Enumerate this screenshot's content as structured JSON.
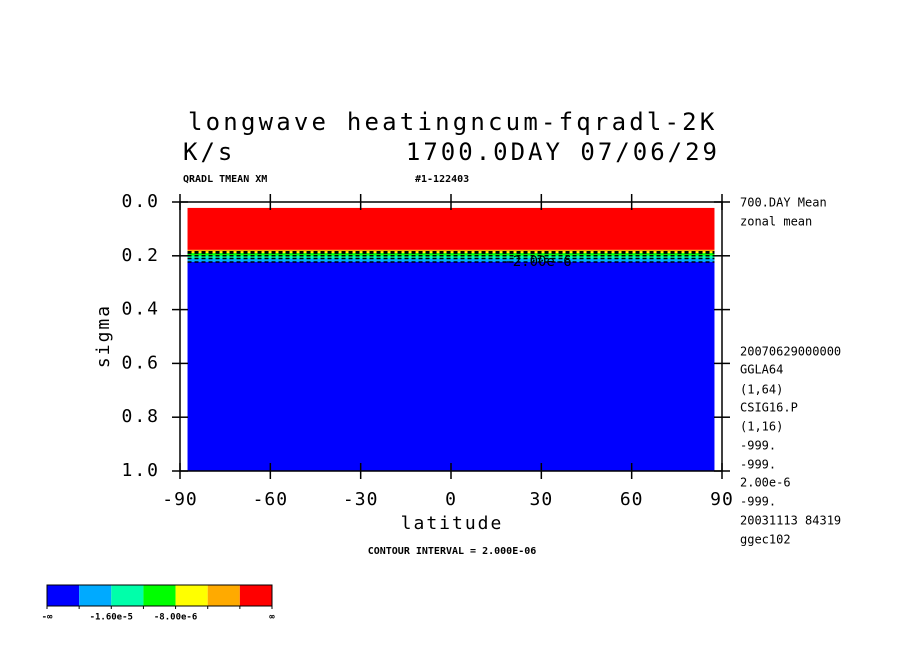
{
  "chart_data": {
    "type": "filled-contour",
    "title": "longwave heatingncum-fqradl-2K",
    "units": "K/s",
    "time_label": "1700.0DAY 07/06/29",
    "variable_label": "QRADL TMEAN XM",
    "run_label": "#1-122403",
    "x_label": "latitude",
    "y_label": "sigma",
    "contour_interval": "CONTOUR INTERVAL = 2.000E-06",
    "contour_label": "-2.00e-6",
    "side_notes": [
      "700.DAY Mean",
      "zonal mean",
      "20070629000000",
      "GGLA64",
      "(1,64)",
      "CSIG16.P",
      "(1,16)",
      "-999.",
      "-999.",
      "2.00e-6",
      "-999.",
      "20031113  84319",
      "ggec102"
    ],
    "xlim": [
      -90,
      90
    ],
    "xticks": [
      -90,
      -60,
      -30,
      0,
      30,
      60,
      90
    ],
    "ylim": [
      0,
      1
    ],
    "y_reversed": true,
    "yticks": [
      {
        "value": 0,
        "label": "0.0"
      },
      0.2,
      0.4,
      0.6,
      0.8,
      {
        "value": 1,
        "label": "1.0"
      }
    ],
    "field": {
      "lat_range": [
        -87.5,
        87.5
      ],
      "bands": [
        {
          "from": 0.022,
          "to": 0.178,
          "color": "#ff0000"
        },
        {
          "from": 0.178,
          "to": 0.185,
          "color": "#ffaa00"
        },
        {
          "from": 0.185,
          "to": 0.19,
          "color": "#ffff00"
        },
        {
          "from": 0.19,
          "to": 0.2,
          "color": "#00ff00"
        },
        {
          "from": 0.2,
          "to": 0.21,
          "color": "#00ffaa"
        },
        {
          "from": 0.21,
          "to": 0.223,
          "color": "#00aaff"
        },
        {
          "from": 0.223,
          "to": 1.0,
          "color": "#0000ff"
        }
      ]
    },
    "colorbar": {
      "colors": [
        "#0000ff",
        "#00aaff",
        "#00ffaa",
        "#00ff00",
        "#ffff00",
        "#ffaa00",
        "#ff0000"
      ],
      "boundary_labels": [
        "-∞",
        null,
        "-1.60e-5",
        null,
        "-8.00e-6",
        null,
        null,
        "∞"
      ]
    }
  }
}
